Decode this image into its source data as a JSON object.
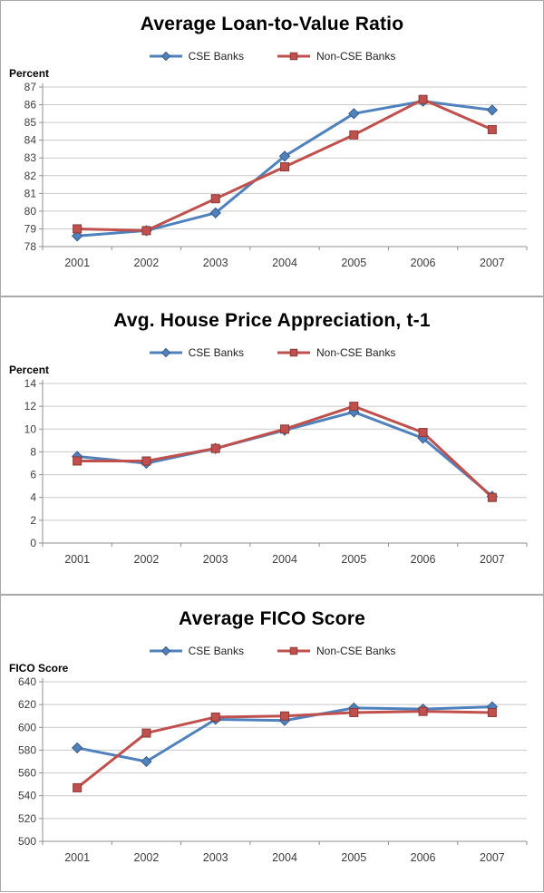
{
  "chart_data": [
    {
      "type": "line",
      "title": "Average Loan-to-Value Ratio",
      "ylabel": "Percent",
      "xlabel": "",
      "categories": [
        "2001",
        "2002",
        "2003",
        "2004",
        "2005",
        "2006",
        "2007"
      ],
      "series": [
        {
          "name": "CSE Banks",
          "color": "#4F81BD",
          "marker": "diamond",
          "values": [
            78.6,
            78.9,
            79.9,
            83.1,
            85.5,
            86.2,
            85.7
          ]
        },
        {
          "name": "Non-CSE Banks",
          "color": "#C0504D",
          "marker": "square",
          "values": [
            79.0,
            78.9,
            80.7,
            82.5,
            84.3,
            86.3,
            84.6
          ]
        }
      ],
      "ylim": [
        78,
        87
      ],
      "ytick_step": 1,
      "grid": true,
      "legend_position": "top"
    },
    {
      "type": "line",
      "title": "Avg. House Price Appreciation, t-1",
      "ylabel": "Percent",
      "xlabel": "",
      "categories": [
        "2001",
        "2002",
        "2003",
        "2004",
        "2005",
        "2006",
        "2007"
      ],
      "series": [
        {
          "name": "CSE Banks",
          "color": "#4F81BD",
          "marker": "diamond",
          "values": [
            7.6,
            7.0,
            8.3,
            9.9,
            11.5,
            9.2,
            4.1
          ]
        },
        {
          "name": "Non-CSE Banks",
          "color": "#C0504D",
          "marker": "square",
          "values": [
            7.2,
            7.2,
            8.3,
            10.0,
            12.0,
            9.7,
            4.0
          ]
        }
      ],
      "ylim": [
        0,
        14
      ],
      "ytick_step": 2,
      "grid": true,
      "legend_position": "top"
    },
    {
      "type": "line",
      "title": "Average FICO Score",
      "ylabel": "FICO Score",
      "xlabel": "",
      "categories": [
        "2001",
        "2002",
        "2003",
        "2004",
        "2005",
        "2006",
        "2007"
      ],
      "series": [
        {
          "name": "CSE Banks",
          "color": "#4F81BD",
          "marker": "diamond",
          "values": [
            582,
            570,
            607,
            606,
            617,
            616,
            618
          ]
        },
        {
          "name": "Non-CSE Banks",
          "color": "#C0504D",
          "marker": "square",
          "values": [
            547,
            595,
            609,
            610,
            613,
            614,
            613
          ]
        }
      ],
      "ylim": [
        500,
        640
      ],
      "ytick_step": 20,
      "grid": true,
      "legend_position": "top"
    }
  ],
  "colors": {
    "cse_line": "#4F81BD",
    "non_cse_line": "#C0504D",
    "gridline": "#c9c9c9",
    "axis": "#8f8f8f",
    "panel_border": "#a9a9a9"
  }
}
